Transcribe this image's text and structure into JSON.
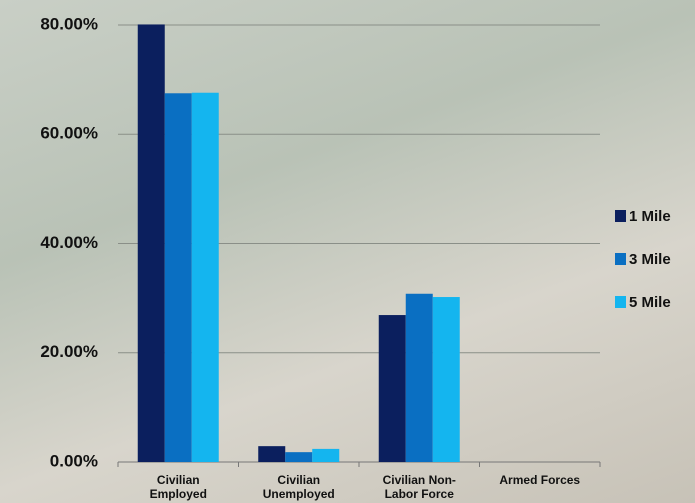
{
  "chart_data": {
    "type": "bar",
    "categories": [
      "Civilian Employed",
      "Civilian Unemployed",
      "Civilian Non-Labor Force",
      "Armed Forces"
    ],
    "series": [
      {
        "name": "1 Mile",
        "color": "#0b1f5e",
        "values": [
          80.1,
          2.9,
          26.9,
          0
        ]
      },
      {
        "name": "3 Mile",
        "color": "#0a6fc2",
        "values": [
          67.5,
          1.8,
          30.8,
          0
        ]
      },
      {
        "name": "5 Mile",
        "color": "#14b5ef",
        "values": [
          67.6,
          2.4,
          30.2,
          0
        ]
      }
    ],
    "ylim": [
      0,
      80
    ],
    "yticks": [
      {
        "value": 0,
        "label": "0.00%"
      },
      {
        "value": 20,
        "label": "20.00%"
      },
      {
        "value": 40,
        "label": "40.00%"
      },
      {
        "value": 60,
        "label": "60.00%"
      },
      {
        "value": 80,
        "label": "80.00%"
      }
    ],
    "grid": true,
    "legend": "right"
  }
}
